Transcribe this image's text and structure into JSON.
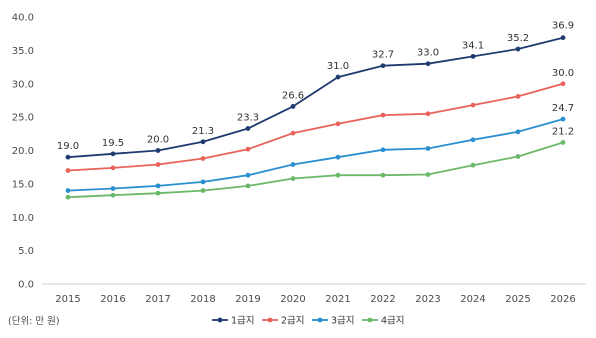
{
  "chart_data": {
    "type": "line",
    "x": [
      "2015",
      "2016",
      "2017",
      "2018",
      "2019",
      "2020",
      "2021",
      "2022",
      "2023",
      "2024",
      "2025",
      "2026"
    ],
    "ylim": [
      0,
      40
    ],
    "yticks": [
      "0.0",
      "5.0",
      "10.0",
      "15.0",
      "20.0",
      "25.0",
      "30.0",
      "35.0",
      "40.0"
    ],
    "unit_label": "(단위: 만 원)",
    "grid": false,
    "legend_position": "bottom",
    "series": [
      {
        "name": "1급지",
        "color": "#1f3a6e",
        "values": [
          19.0,
          19.5,
          20.0,
          21.3,
          23.3,
          26.6,
          31.0,
          32.7,
          33.0,
          34.1,
          35.2,
          36.9
        ],
        "labels": [
          "19.0",
          "19.5",
          "20.0",
          "21.3",
          "23.3",
          "26.6",
          "31.0",
          "32.7",
          "33.0",
          "34.1",
          "35.2",
          "36.9"
        ]
      },
      {
        "name": "2급지",
        "color": "#e8635c",
        "values": [
          17.0,
          17.4,
          17.9,
          18.8,
          20.2,
          22.6,
          24.0,
          25.3,
          25.5,
          26.8,
          28.1,
          30.0
        ],
        "labels": [
          "",
          "",
          "",
          "",
          "",
          "",
          "",
          "",
          "",
          "",
          "",
          "30.0"
        ]
      },
      {
        "name": "3급지",
        "color": "#2a8fcf",
        "values": [
          14.0,
          14.3,
          14.7,
          15.3,
          16.3,
          17.9,
          19.0,
          20.1,
          20.3,
          21.6,
          22.8,
          24.7
        ],
        "labels": [
          "",
          "",
          "",
          "",
          "",
          "",
          "",
          "",
          "",
          "",
          "",
          "24.7"
        ]
      },
      {
        "name": "4급지",
        "color": "#6cb86a",
        "values": [
          13.0,
          13.3,
          13.6,
          14.0,
          14.7,
          15.8,
          16.3,
          16.3,
          16.4,
          17.8,
          19.1,
          21.2
        ],
        "labels": [
          "",
          "",
          "",
          "",
          "",
          "",
          "",
          "",
          "",
          "",
          "",
          "21.2"
        ]
      }
    ]
  }
}
